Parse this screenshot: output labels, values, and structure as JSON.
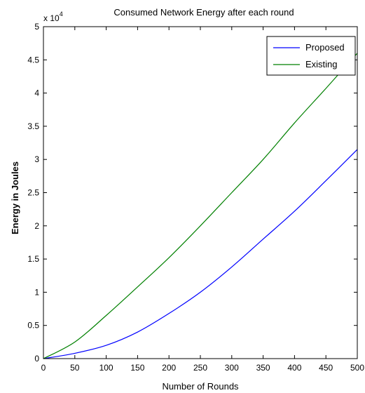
{
  "chart_data": {
    "type": "line",
    "title": "Consumed Network Energy after each round",
    "xlabel": "Number of Rounds",
    "ylabel": "Energy in Joules",
    "y_exponent_prefix": "x 10",
    "y_exponent": "4",
    "xlim": [
      0,
      500
    ],
    "ylim": [
      0,
      5
    ],
    "xticks": [
      0,
      50,
      100,
      150,
      200,
      250,
      300,
      350,
      400,
      450,
      500
    ],
    "yticks": [
      0,
      0.5,
      1,
      1.5,
      2,
      2.5,
      3,
      3.5,
      4,
      4.5,
      5
    ],
    "ytick_labels": [
      "0",
      "0.5",
      "1",
      "1.5",
      "2",
      "2.5",
      "3",
      "3.5",
      "4",
      "4.5",
      "5"
    ],
    "grid": false,
    "legend_position": "top-right",
    "x": [
      0,
      50,
      100,
      150,
      200,
      250,
      300,
      350,
      400,
      450,
      500
    ],
    "series": [
      {
        "name": "Proposed",
        "color": "#0000ff",
        "values": [
          0,
          0.08,
          0.2,
          0.4,
          0.68,
          1.0,
          1.38,
          1.8,
          2.22,
          2.68,
          3.15
        ]
      },
      {
        "name": "Existing",
        "color": "#008000",
        "values": [
          0,
          0.25,
          0.65,
          1.08,
          1.52,
          2.0,
          2.5,
          3.0,
          3.55,
          4.07,
          4.6
        ]
      }
    ]
  }
}
